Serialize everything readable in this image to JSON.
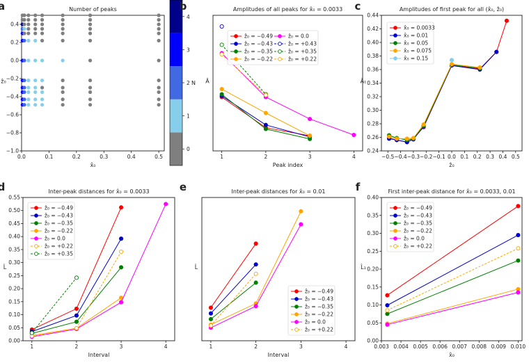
{
  "panels": [
    {
      "id": "a",
      "type": "scatter_grid",
      "title": "Number of peaks",
      "xlabel": "x̂₀",
      "ylabel": "ẑ₀",
      "xlim": [
        0,
        0.52
      ],
      "ylim": [
        -1.0,
        0.5
      ],
      "xticks": [
        0.0,
        0.1,
        0.2,
        0.3,
        0.4,
        0.5
      ],
      "yticks": [
        -1.0,
        -0.8,
        -0.6,
        -0.4,
        -0.2,
        0.0,
        0.2,
        0.4
      ],
      "x_values": [
        0.0033,
        0.01,
        0.025,
        0.05,
        0.075,
        0.15,
        0.25,
        0.5
      ],
      "z_values": [
        0.5,
        0.45,
        0.4,
        0.35,
        0.3,
        0.22,
        0.0,
        -0.22,
        -0.3,
        -0.35,
        -0.43,
        -0.49
      ],
      "counts": [
        [
          0,
          0,
          0,
          0,
          0,
          0,
          0,
          0
        ],
        [
          0,
          0,
          0,
          0,
          0,
          0,
          0,
          0
        ],
        [
          4,
          0,
          0,
          0,
          0,
          0,
          0,
          0
        ],
        [
          2,
          1,
          0,
          0,
          0,
          0,
          0,
          0
        ],
        [
          3,
          0,
          0,
          0,
          0,
          0,
          0,
          0
        ],
        [
          3,
          2,
          1,
          1,
          0,
          0,
          0,
          0
        ],
        [
          3,
          2,
          1,
          1,
          1,
          1,
          0,
          0
        ],
        [
          3,
          2,
          1,
          1,
          1,
          0,
          0,
          0
        ],
        [
          3,
          2,
          1,
          1,
          0,
          0,
          0,
          0
        ],
        [
          3,
          2,
          1,
          1,
          1,
          0,
          0,
          0
        ],
        [
          3,
          2,
          1,
          1,
          1,
          0,
          0,
          0
        ],
        [
          3,
          2,
          1,
          1,
          1,
          0,
          0,
          0
        ]
      ],
      "colormap": [
        "#7f7f7f",
        "#87ceeb",
        "#4169e1",
        "#0000ff",
        "#00008b"
      ],
      "colorbar": {
        "label": "N",
        "ticks": [
          0,
          1,
          2,
          3,
          4
        ]
      }
    },
    {
      "id": "b",
      "type": "line",
      "title": "Amplitudes of all peaks for x̂₀ = 0.0033",
      "xlabel": "Peak index",
      "ylabel": "Â",
      "xlim": [
        0.8,
        4.2
      ],
      "ylim": [
        0.12,
        0.46
      ],
      "xticks": [
        1,
        2,
        3,
        4
      ],
      "yticks": [],
      "legend_ncol": 2,
      "series": [
        {
          "name": "ẑ₀ = −0.49",
          "color": "#ff0000",
          "dashed": false,
          "hollow": false,
          "x": [
            1,
            2,
            3
          ],
          "y": [
            0.255,
            0.178,
            0.158
          ]
        },
        {
          "name": "ẑ₀ = −0.43",
          "color": "#0000cc",
          "dashed": false,
          "hollow": false,
          "x": [
            1,
            2,
            3
          ],
          "y": [
            0.258,
            0.185,
            0.155
          ]
        },
        {
          "name": "ẑ₀ = −0.35",
          "color": "#008000",
          "dashed": false,
          "hollow": false,
          "x": [
            1,
            2,
            3
          ],
          "y": [
            0.262,
            0.175,
            0.15
          ]
        },
        {
          "name": "ẑ₀ = −0.22",
          "color": "#ffa500",
          "dashed": false,
          "hollow": false,
          "x": [
            1,
            2,
            3
          ],
          "y": [
            0.275,
            0.215,
            0.158
          ]
        },
        {
          "name": "ẑ₀ = 0.0",
          "color": "#ff00ff",
          "dashed": false,
          "hollow": false,
          "x": [
            1,
            2,
            3,
            4
          ],
          "y": [
            0.365,
            0.255,
            0.2,
            0.16
          ]
        },
        {
          "name": "ẑ₀ = +0.43",
          "color": "#0000cc",
          "dashed": true,
          "hollow": true,
          "x": [
            1
          ],
          "y": [
            0.432
          ]
        },
        {
          "name": "ẑ₀ = +0.35",
          "color": "#008000",
          "dashed": true,
          "hollow": true,
          "x": [
            1,
            2
          ],
          "y": [
            0.386,
            0.262
          ]
        },
        {
          "name": "ẑ₀ = +0.22",
          "color": "#ffa500",
          "dashed": true,
          "hollow": true,
          "x": [
            1,
            2
          ],
          "y": [
            0.362,
            0.26
          ]
        }
      ]
    },
    {
      "id": "c",
      "type": "line",
      "title": "Amplitudes of first peak for all (x̂₀, ẑ₀)",
      "xlabel": "ẑ₀",
      "ylabel": "Â₁",
      "xlim": [
        -0.55,
        0.55
      ],
      "ylim": [
        0.24,
        0.44
      ],
      "xticks": [
        -0.5,
        -0.4,
        -0.3,
        -0.2,
        -0.1,
        0.0,
        0.1,
        0.2,
        0.3,
        0.4,
        0.5
      ],
      "yticks": [
        0.24,
        0.26,
        0.28,
        0.3,
        0.32,
        0.34,
        0.36,
        0.38,
        0.4,
        0.42,
        0.44
      ],
      "legend_ncol": 1,
      "series": [
        {
          "name": "x̂₀ = 0.0033",
          "color": "#ff0000",
          "dashed": false,
          "hollow": false,
          "x": [
            -0.49,
            -0.43,
            -0.35,
            -0.3,
            -0.22,
            0.0,
            0.22,
            0.35,
            0.43
          ],
          "y": [
            0.259,
            0.256,
            0.253,
            0.258,
            0.275,
            0.366,
            0.361,
            0.386,
            0.432
          ]
        },
        {
          "name": "x̂₀ = 0.01",
          "color": "#0000cc",
          "dashed": false,
          "hollow": false,
          "x": [
            -0.49,
            -0.43,
            -0.35,
            -0.3,
            -0.22,
            0.0,
            0.22,
            0.35
          ],
          "y": [
            0.258,
            0.256,
            0.253,
            0.257,
            0.276,
            0.366,
            0.36,
            0.386
          ]
        },
        {
          "name": "x̂₀ = 0.05",
          "color": "#008000",
          "dashed": false,
          "hollow": false,
          "x": [
            -0.49,
            -0.43,
            -0.35,
            -0.3,
            -0.22,
            0.0,
            0.22
          ],
          "y": [
            0.263,
            0.259,
            0.256,
            0.258,
            0.277,
            0.367,
            0.362
          ]
        },
        {
          "name": "x̂₀ = 0.075",
          "color": "#ffa500",
          "dashed": false,
          "hollow": false,
          "x": [
            -0.49,
            -0.43,
            -0.35,
            -0.3,
            -0.22,
            0.0,
            0.22
          ],
          "y": [
            0.261,
            0.258,
            0.258,
            0.259,
            0.279,
            0.368,
            0.363
          ]
        },
        {
          "name": "x̂₀ = 0.15",
          "color": "#87ceeb",
          "dashed": false,
          "hollow": false,
          "x": [
            0.0
          ],
          "y": [
            0.374
          ]
        }
      ]
    },
    {
      "id": "d",
      "type": "line",
      "title": "Inter-peak distances for x̂₀ = 0.0033",
      "xlabel": "Interval",
      "ylabel": "L̂",
      "xlim": [
        0.8,
        4.2
      ],
      "ylim": [
        0.0,
        0.55
      ],
      "xticks": [
        1,
        2,
        3,
        4
      ],
      "yticks": [
        0.0,
        0.05,
        0.1,
        0.15,
        0.2,
        0.25,
        0.3,
        0.35,
        0.4,
        0.45,
        0.5,
        0.55
      ],
      "legend_ncol": 1,
      "series": [
        {
          "name": "ẑ₀ = −0.49",
          "color": "#ff0000",
          "dashed": false,
          "hollow": false,
          "x": [
            1,
            2,
            3
          ],
          "y": [
            0.043,
            0.123,
            0.512
          ]
        },
        {
          "name": "ẑ₀ = −0.43",
          "color": "#0000cc",
          "dashed": false,
          "hollow": false,
          "x": [
            1,
            2,
            3
          ],
          "y": [
            0.035,
            0.097,
            0.392
          ]
        },
        {
          "name": "ẑ₀ = −0.35",
          "color": "#008000",
          "dashed": false,
          "hollow": false,
          "x": [
            1,
            2,
            3
          ],
          "y": [
            0.028,
            0.073,
            0.282
          ]
        },
        {
          "name": "ẑ₀ = −0.22",
          "color": "#ffa500",
          "dashed": false,
          "hollow": false,
          "x": [
            1,
            2,
            3
          ],
          "y": [
            0.02,
            0.048,
            0.165
          ]
        },
        {
          "name": "ẑ₀ = 0.0",
          "color": "#ff00ff",
          "dashed": false,
          "hollow": false,
          "x": [
            1,
            2,
            3,
            4
          ],
          "y": [
            0.015,
            0.045,
            0.148,
            0.525
          ]
        },
        {
          "name": "ẑ₀ = +0.22",
          "color": "#ffa500",
          "dashed": true,
          "hollow": true,
          "x": [
            1,
            2,
            3
          ],
          "y": [
            0.018,
            0.048,
            0.342
          ]
        },
        {
          "name": "ẑ₀ = +0.35",
          "color": "#008000",
          "dashed": true,
          "hollow": true,
          "x": [
            1,
            2
          ],
          "y": [
            0.03,
            0.242
          ]
        }
      ]
    },
    {
      "id": "e",
      "type": "line",
      "title": "Inter-peak distances for x̂₀ = 0.01",
      "xlabel": "Interval",
      "ylabel": "L̂",
      "xlim": [
        0.8,
        4.2
      ],
      "ylim": [
        0.0,
        0.55
      ],
      "xticks": [
        1,
        2,
        3,
        4
      ],
      "yticks": [],
      "legend_ncol": 1,
      "series": [
        {
          "name": "ẑ₀ = −0.49",
          "color": "#ff0000",
          "dashed": false,
          "hollow": false,
          "x": [
            1,
            2
          ],
          "y": [
            0.127,
            0.373
          ]
        },
        {
          "name": "ẑ₀ = −0.43",
          "color": "#0000cc",
          "dashed": false,
          "hollow": false,
          "x": [
            1,
            2
          ],
          "y": [
            0.105,
            0.293
          ]
        },
        {
          "name": "ẑ₀ = −0.35",
          "color": "#008000",
          "dashed": false,
          "hollow": false,
          "x": [
            1,
            2
          ],
          "y": [
            0.083,
            0.223
          ]
        },
        {
          "name": "ẑ₀ = −0.22",
          "color": "#ffa500",
          "dashed": false,
          "hollow": false,
          "x": [
            1,
            2,
            3
          ],
          "y": [
            0.062,
            0.143,
            0.497
          ]
        },
        {
          "name": "ẑ₀ = 0.0",
          "color": "#ff00ff",
          "dashed": false,
          "hollow": false,
          "x": [
            1,
            2,
            3
          ],
          "y": [
            0.05,
            0.133,
            0.447
          ]
        },
        {
          "name": "ẑ₀ = +0.22",
          "color": "#ffa500",
          "dashed": true,
          "hollow": true,
          "x": [
            1,
            2
          ],
          "y": [
            0.058,
            0.257
          ]
        }
      ]
    },
    {
      "id": "f",
      "type": "line",
      "title": "First inter-peak distance for x̂₀ = 0.0033, 0.01",
      "xlabel": "x̂₀",
      "ylabel": "L̂₁",
      "xlim": [
        0.003,
        0.0102
      ],
      "ylim": [
        0.0,
        0.4
      ],
      "xticks": [
        0.003,
        0.004,
        0.005,
        0.006,
        0.007,
        0.008,
        0.009,
        0.01
      ],
      "yticks": [
        0.0,
        0.05,
        0.1,
        0.15,
        0.2,
        0.25,
        0.3,
        0.35,
        0.4
      ],
      "legend_ncol": 1,
      "series": [
        {
          "name": "ẑ₀ = −0.49",
          "color": "#ff0000",
          "dashed": false,
          "hollow": false,
          "x": [
            0.0033,
            0.01
          ],
          "y": [
            0.127,
            0.376
          ]
        },
        {
          "name": "ẑ₀ = −0.43",
          "color": "#0000cc",
          "dashed": false,
          "hollow": false,
          "x": [
            0.0033,
            0.01
          ],
          "y": [
            0.099,
            0.295
          ]
        },
        {
          "name": "ẑ₀ = −0.35",
          "color": "#008000",
          "dashed": false,
          "hollow": false,
          "x": [
            0.0033,
            0.01
          ],
          "y": [
            0.075,
            0.224
          ]
        },
        {
          "name": "ẑ₀ = −0.22",
          "color": "#ffa500",
          "dashed": false,
          "hollow": false,
          "x": [
            0.0033,
            0.01
          ],
          "y": [
            0.048,
            0.144
          ]
        },
        {
          "name": "ẑ₀ = 0.0",
          "color": "#ff00ff",
          "dashed": false,
          "hollow": false,
          "x": [
            0.0033,
            0.01
          ],
          "y": [
            0.045,
            0.135
          ]
        },
        {
          "name": "ẑ₀ = +0.22",
          "color": "#ffa500",
          "dashed": true,
          "hollow": true,
          "x": [
            0.0033,
            0.01
          ],
          "y": [
            0.085,
            0.258
          ]
        }
      ]
    }
  ]
}
